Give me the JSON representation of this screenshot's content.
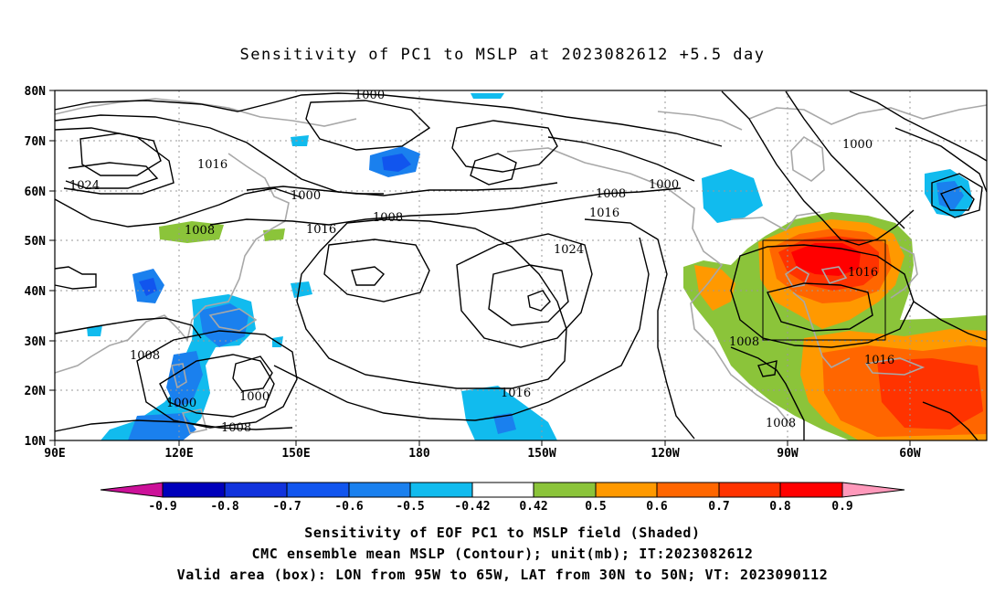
{
  "title": "Sensitivity of PC1 to MSLP at 2023082612 +5.5 day",
  "lat_ticks": [
    "80N",
    "70N",
    "60N",
    "50N",
    "40N",
    "30N",
    "20N",
    "10N"
  ],
  "lon_ticks": [
    "90E",
    "120E",
    "150E",
    "180",
    "150W",
    "120W",
    "90W",
    "60W"
  ],
  "contour_labels": [
    "1000",
    "1016",
    "1024",
    "1000",
    "1008",
    "1016",
    "1008",
    "1008",
    "1016",
    "1024",
    "1000",
    "1008",
    "1000",
    "1016",
    "1008",
    "1016",
    "1008",
    "1000",
    "1008",
    "1016"
  ],
  "colorbar": {
    "labels": [
      "-0.9",
      "-0.8",
      "-0.7",
      "-0.6",
      "-0.5",
      "-0.42",
      "0.42",
      "0.5",
      "0.6",
      "0.7",
      "0.8",
      "0.9"
    ],
    "colors": [
      "#cc1199",
      "#0000bb",
      "#1133dd",
      "#1155ee",
      "#1a80ee",
      "#11bbee",
      "#ffffff",
      "#8bc43a",
      "#ff9900",
      "#ff6600",
      "#ff3300",
      "#ff0000",
      "#ff99bb"
    ]
  },
  "box": {
    "lon_from": "95W",
    "lon_to": "65W",
    "lat_from": "30N",
    "lat_to": "50N"
  },
  "captions": [
    "Sensitivity of EOF PC1 to MSLP field (Shaded)",
    "CMC ensemble mean MSLP (Contour); unit(mb); IT:2023082612",
    "Valid area (box): LON from 95W to 65W, LAT from 30N to 50N; VT: 2023090112"
  ]
}
